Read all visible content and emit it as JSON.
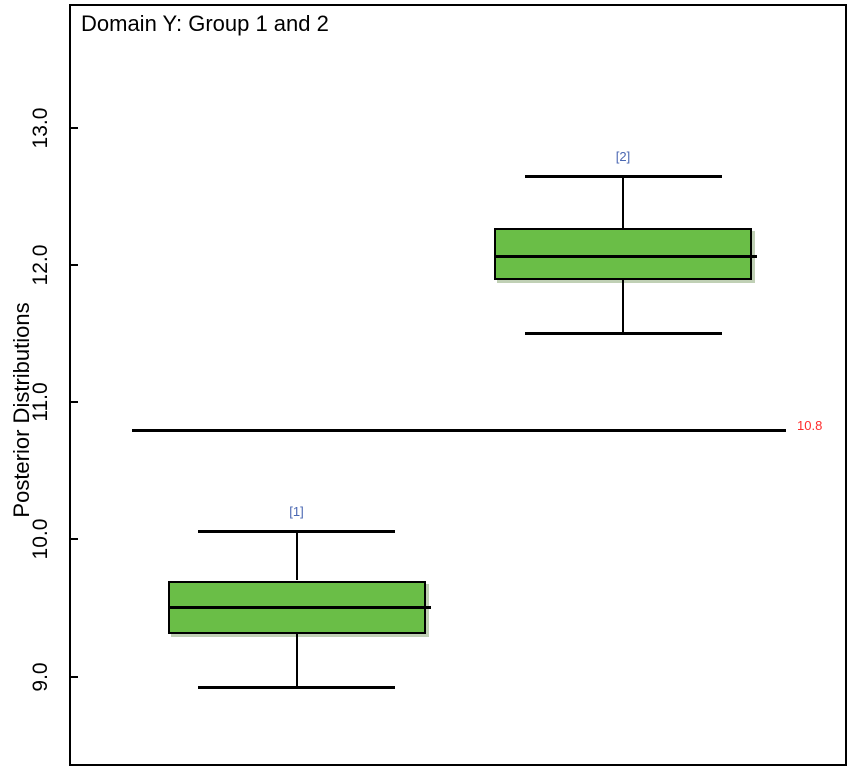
{
  "chart_data": {
    "type": "boxplot",
    "title": "Domain Y: Group 1 and 2",
    "ylabel": "Posterior Distributions",
    "ylim": [
      8.34,
      13.89
    ],
    "yticks": [
      9.0,
      10.0,
      11.0,
      12.0,
      13.0
    ],
    "ytick_labels": [
      "9.0",
      "10.0",
      "11.0",
      "12.0",
      "13.0"
    ],
    "grid": false,
    "orientation": "vertical",
    "box_fill_color": "#6abe47",
    "box_border_color": "#000000",
    "group_label_color": "#4a67b2",
    "reference_line": {
      "value": 10.8,
      "label": "10.8",
      "color": "#ff2b2b"
    },
    "series": [
      {
        "label": "[1]",
        "lower_whisker": 8.92,
        "q1": 9.31,
        "median": 9.51,
        "q3": 9.7,
        "upper_whisker": 10.06
      },
      {
        "label": "[2]",
        "lower_whisker": 11.5,
        "q1": 11.89,
        "median": 12.07,
        "q3": 12.27,
        "upper_whisker": 12.65
      }
    ]
  }
}
